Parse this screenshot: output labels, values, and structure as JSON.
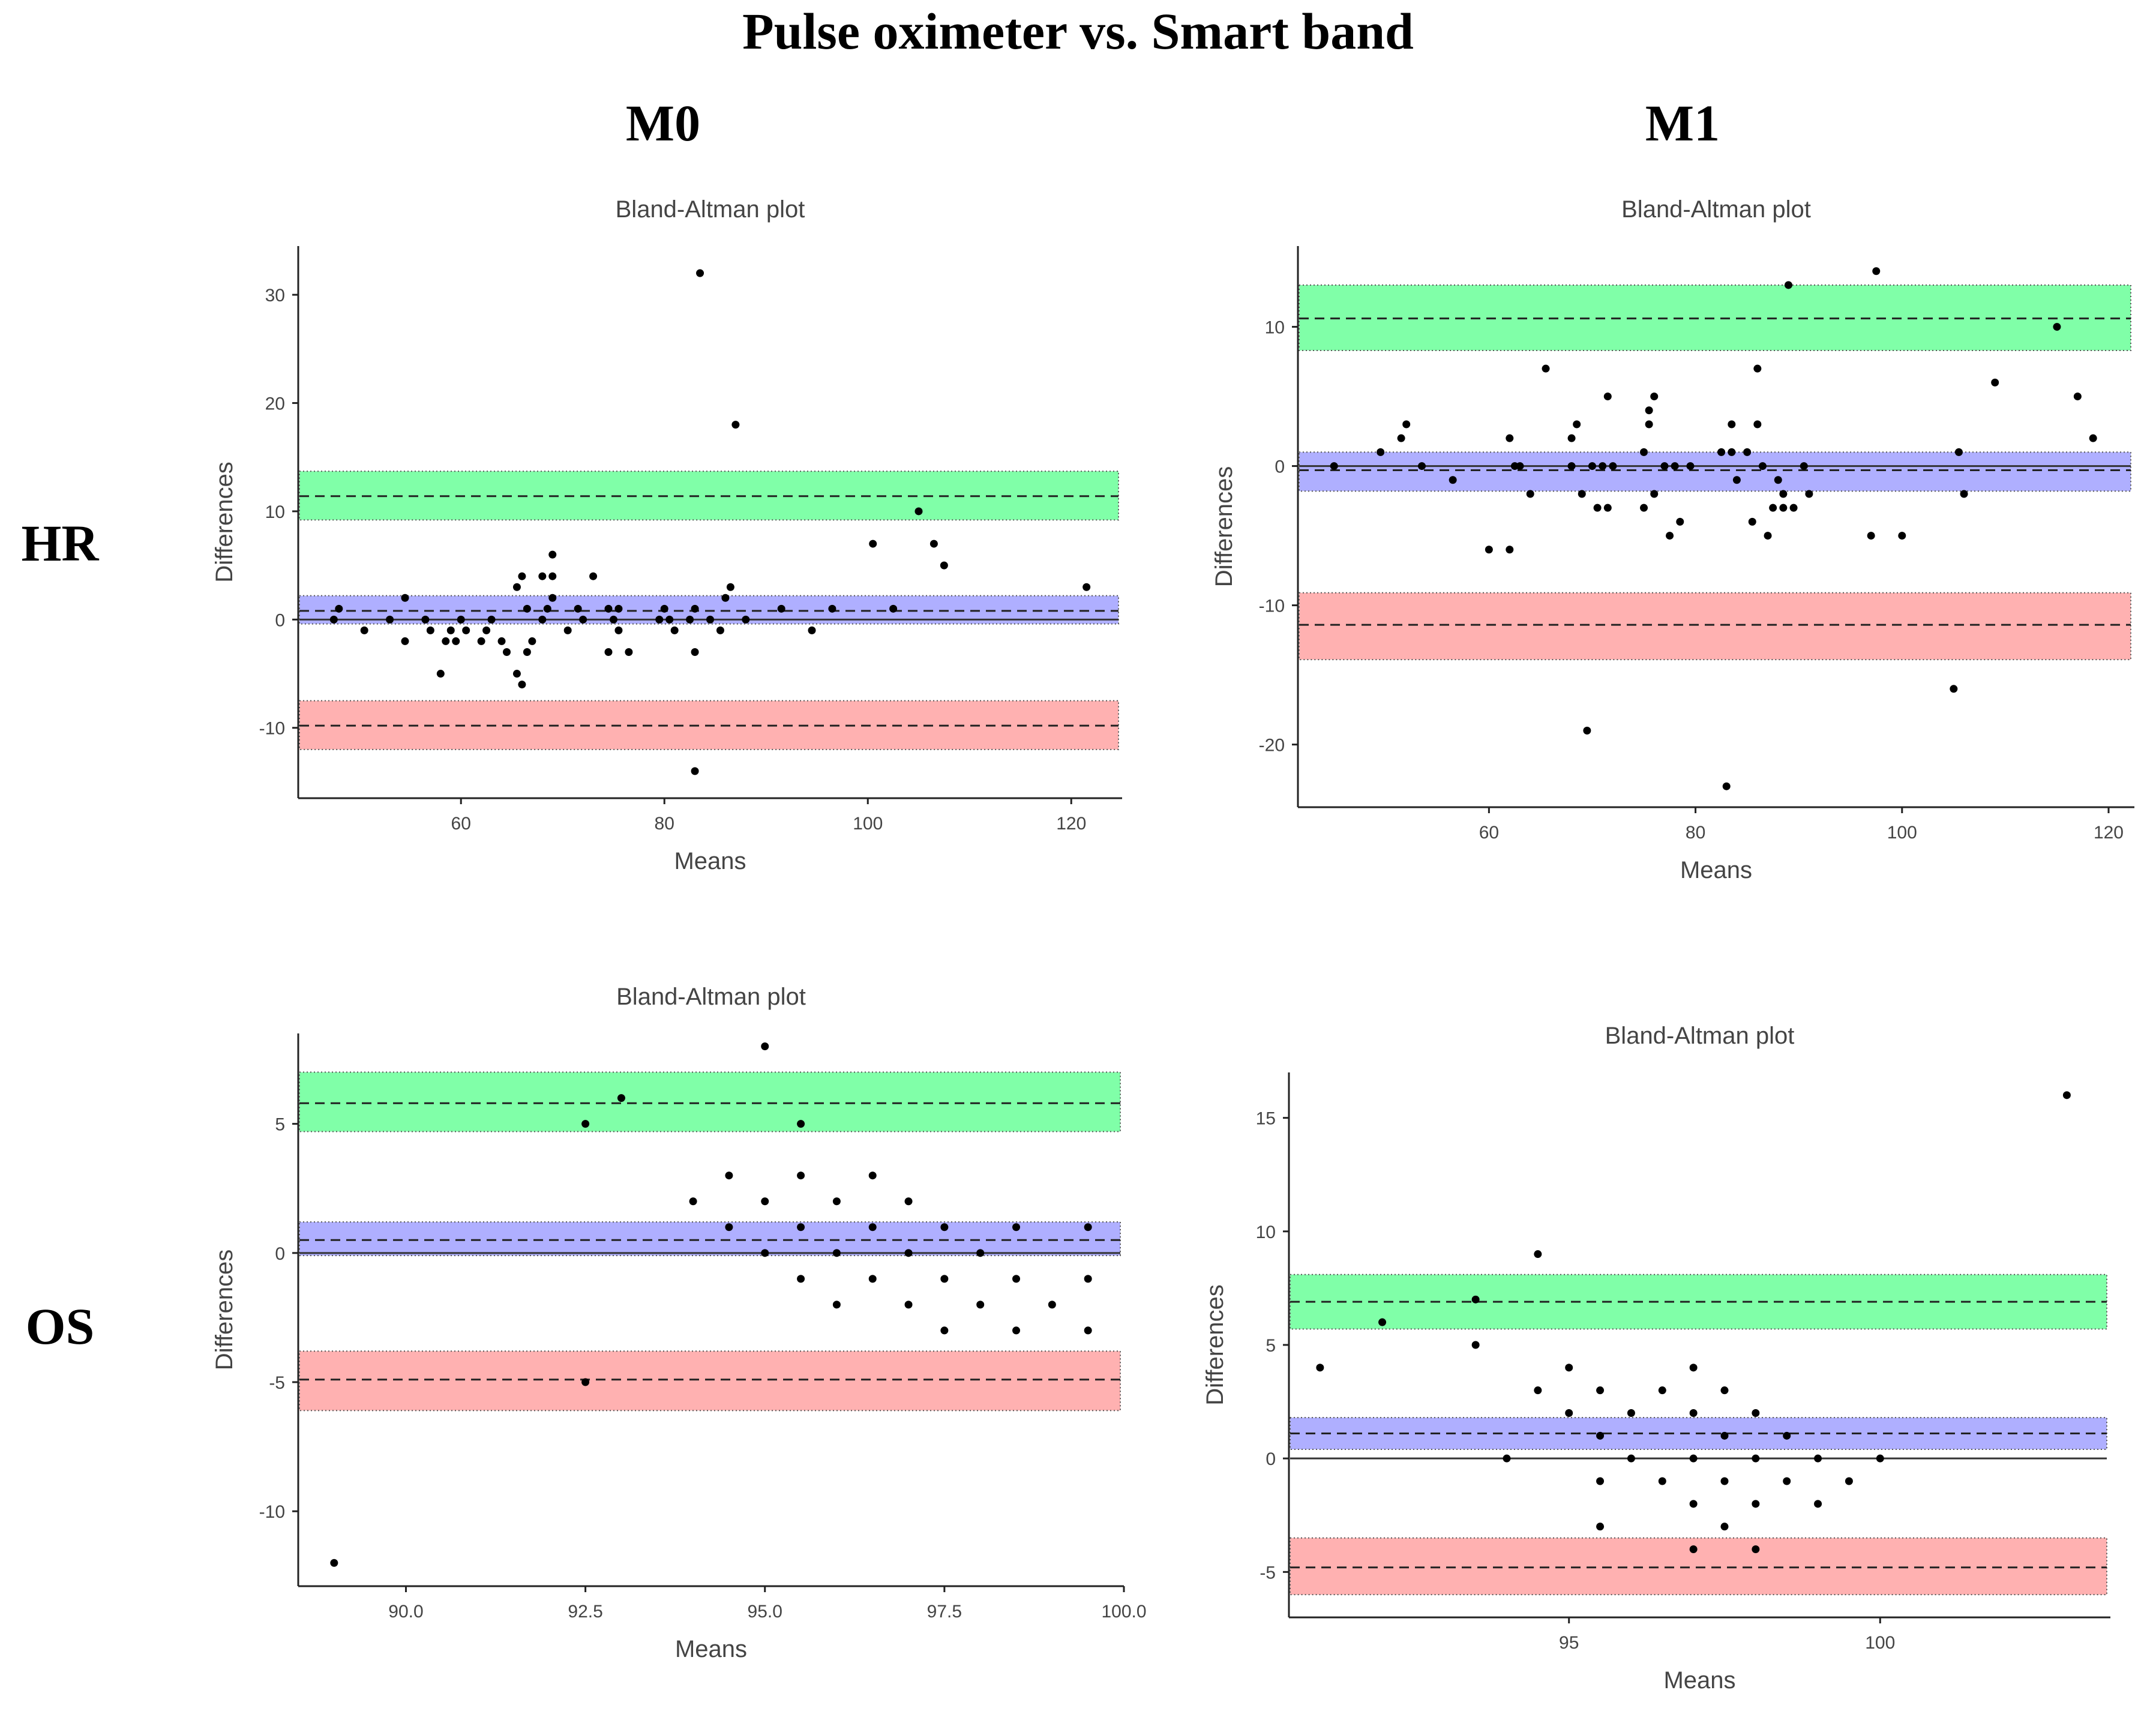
{
  "figure": {
    "title": "Pulse oximeter vs. Smart band",
    "columns": [
      "M0",
      "M1"
    ],
    "rows": [
      "HR",
      "OS"
    ]
  },
  "colors": {
    "upper_band": "#80ffa8",
    "mean_band": "#afafff",
    "lower_band": "#ffb1b1",
    "points": "#000000"
  },
  "chart_data": [
    {
      "id": "hr-m0",
      "type": "scatter",
      "title": "Bland-Altman plot",
      "xlabel": "Means",
      "ylabel": "Differences",
      "xlim": [
        44,
        125
      ],
      "ylim": [
        -16.5,
        34.5
      ],
      "xticks": [
        60,
        80,
        100,
        120
      ],
      "xtick_labels": [
        "60",
        "80",
        "100",
        "120"
      ],
      "yticks": [
        -10,
        0,
        10,
        20,
        30
      ],
      "ytick_labels": [
        "-10",
        "0",
        "10",
        "20",
        "30"
      ],
      "upper_loa": {
        "line": 11.4,
        "band": [
          9.2,
          13.7
        ]
      },
      "mean_diff": {
        "line": 0.8,
        "band": [
          -0.4,
          2.2
        ]
      },
      "lower_loa": {
        "line": -9.8,
        "band": [
          -12,
          -7.5
        ]
      },
      "points": [
        [
          47.5,
          0
        ],
        [
          48,
          1
        ],
        [
          50.5,
          -1
        ],
        [
          53,
          0
        ],
        [
          54.5,
          -2
        ],
        [
          54.5,
          2
        ],
        [
          56.5,
          0
        ],
        [
          57,
          -1
        ],
        [
          58,
          -5
        ],
        [
          58.5,
          -2
        ],
        [
          59,
          -1
        ],
        [
          59.5,
          -2
        ],
        [
          60,
          0
        ],
        [
          60.5,
          -1
        ],
        [
          62,
          -2
        ],
        [
          62.5,
          -1
        ],
        [
          63,
          0
        ],
        [
          64,
          -2
        ],
        [
          64.5,
          -3
        ],
        [
          65.5,
          3
        ],
        [
          65.5,
          -5
        ],
        [
          66,
          4
        ],
        [
          66,
          -6
        ],
        [
          66.5,
          1
        ],
        [
          66.5,
          -3
        ],
        [
          67,
          -2
        ],
        [
          68,
          0
        ],
        [
          68,
          4
        ],
        [
          68.5,
          1
        ],
        [
          69,
          2
        ],
        [
          69,
          4
        ],
        [
          69,
          6
        ],
        [
          70.5,
          -1
        ],
        [
          71.5,
          1
        ],
        [
          72,
          0
        ],
        [
          73,
          4
        ],
        [
          74.5,
          1
        ],
        [
          74.5,
          -3
        ],
        [
          75,
          0
        ],
        [
          75.5,
          1
        ],
        [
          75.5,
          -1
        ],
        [
          76.5,
          -3
        ],
        [
          79.5,
          0
        ],
        [
          80,
          1
        ],
        [
          80.5,
          0
        ],
        [
          81,
          -1
        ],
        [
          82.5,
          0
        ],
        [
          83,
          1
        ],
        [
          83,
          -3
        ],
        [
          83.5,
          32
        ],
        [
          84.5,
          0
        ],
        [
          85.5,
          -1
        ],
        [
          86,
          2
        ],
        [
          86.5,
          3
        ],
        [
          87,
          18
        ],
        [
          88,
          0
        ],
        [
          91.5,
          1
        ],
        [
          94.5,
          -1
        ],
        [
          96.5,
          1
        ],
        [
          100.5,
          7
        ],
        [
          102.5,
          1
        ],
        [
          105,
          10
        ],
        [
          106.5,
          7
        ],
        [
          107.5,
          5
        ],
        [
          121.5,
          3
        ],
        [
          83,
          -14
        ]
      ]
    },
    {
      "id": "hr-m1",
      "type": "scatter",
      "title": "Bland-Altman plot",
      "xlabel": "Means",
      "ylabel": "Differences",
      "xlim": [
        41.5,
        122.5
      ],
      "ylim": [
        -24.5,
        15.8
      ],
      "xticks": [
        60,
        80,
        100,
        120
      ],
      "xtick_labels": [
        "60",
        "80",
        "100",
        "120"
      ],
      "yticks": [
        -20,
        -10,
        0,
        10
      ],
      "ytick_labels": [
        "-20",
        "-10",
        "0",
        "10"
      ],
      "upper_loa": {
        "line": 10.6,
        "band": [
          8.3,
          13
        ]
      },
      "mean_diff": {
        "line": -0.3,
        "band": [
          -1.8,
          1
        ]
      },
      "lower_loa": {
        "line": -11.4,
        "band": [
          -13.9,
          -9.1
        ]
      },
      "points": [
        [
          45,
          0
        ],
        [
          49.5,
          1
        ],
        [
          51.5,
          2
        ],
        [
          52,
          3
        ],
        [
          53.5,
          0
        ],
        [
          56.5,
          -1
        ],
        [
          60,
          -6
        ],
        [
          62,
          -6
        ],
        [
          62,
          2
        ],
        [
          62.5,
          0
        ],
        [
          63,
          0
        ],
        [
          64,
          -2
        ],
        [
          65.5,
          7
        ],
        [
          68,
          0
        ],
        [
          68,
          2
        ],
        [
          68.5,
          3
        ],
        [
          69,
          -2
        ],
        [
          69.5,
          -19
        ],
        [
          70,
          0
        ],
        [
          70.5,
          -3
        ],
        [
          71,
          0
        ],
        [
          71.5,
          -3
        ],
        [
          71.5,
          5
        ],
        [
          72,
          0
        ],
        [
          75,
          -3
        ],
        [
          75,
          1
        ],
        [
          75.5,
          3
        ],
        [
          75.5,
          4
        ],
        [
          76,
          -2
        ],
        [
          76,
          5
        ],
        [
          77,
          0
        ],
        [
          77.5,
          -5
        ],
        [
          78,
          0
        ],
        [
          78.5,
          -4
        ],
        [
          79.5,
          0
        ],
        [
          82.5,
          1
        ],
        [
          83,
          -23
        ],
        [
          83.5,
          3
        ],
        [
          83.5,
          1
        ],
        [
          84,
          -1
        ],
        [
          85,
          1
        ],
        [
          85.5,
          -4
        ],
        [
          86,
          7
        ],
        [
          86,
          3
        ],
        [
          86.5,
          0
        ],
        [
          87,
          -5
        ],
        [
          87.5,
          -3
        ],
        [
          88,
          -1
        ],
        [
          88.5,
          -2
        ],
        [
          88.5,
          -3
        ],
        [
          89,
          13
        ],
        [
          89.5,
          -3
        ],
        [
          90.5,
          0
        ],
        [
          91,
          -2
        ],
        [
          97,
          -5
        ],
        [
          97.5,
          14
        ],
        [
          100,
          -5
        ],
        [
          105,
          -16
        ],
        [
          105.5,
          1
        ],
        [
          106,
          -2
        ],
        [
          109,
          6
        ],
        [
          115,
          10
        ],
        [
          117,
          5
        ],
        [
          118.5,
          2
        ]
      ]
    },
    {
      "id": "os-m0",
      "type": "scatter",
      "title": "Bland-Altman plot",
      "xlabel": "Means",
      "ylabel": "Differences",
      "xlim": [
        88.5,
        100
      ],
      "ylim": [
        -12.9,
        8.5
      ],
      "xticks": [
        90,
        92.5,
        95,
        97.5,
        100
      ],
      "xtick_labels": [
        "90.0",
        "92.5",
        "95.0",
        "97.5",
        "100.0"
      ],
      "yticks": [
        -10,
        -5,
        0,
        5
      ],
      "ytick_labels": [
        "-10",
        "-5",
        "0",
        "5"
      ],
      "upper_loa": {
        "line": 5.8,
        "band": [
          4.7,
          7
        ]
      },
      "mean_diff": {
        "line": 0.5,
        "band": [
          -0.1,
          1.2
        ]
      },
      "lower_loa": {
        "line": -4.9,
        "band": [
          -6.1,
          -3.8
        ]
      },
      "points": [
        [
          89,
          -12
        ],
        [
          92.5,
          5
        ],
        [
          92.5,
          -5
        ],
        [
          93,
          6
        ],
        [
          94,
          2
        ],
        [
          94.5,
          3
        ],
        [
          94.5,
          1
        ],
        [
          95,
          8
        ],
        [
          95,
          2
        ],
        [
          95,
          0
        ],
        [
          95.5,
          5
        ],
        [
          95.5,
          3
        ],
        [
          95.5,
          1
        ],
        [
          95.5,
          -1
        ],
        [
          96,
          2
        ],
        [
          96,
          0
        ],
        [
          96,
          -2
        ],
        [
          96.5,
          3
        ],
        [
          96.5,
          1
        ],
        [
          96.5,
          -1
        ],
        [
          97,
          2
        ],
        [
          97,
          0
        ],
        [
          97,
          -2
        ],
        [
          97.5,
          1
        ],
        [
          97.5,
          -1
        ],
        [
          97.5,
          -3
        ],
        [
          98,
          0
        ],
        [
          98,
          -2
        ],
        [
          98.5,
          1
        ],
        [
          98.5,
          -1
        ],
        [
          98.5,
          -3
        ],
        [
          99,
          -2
        ],
        [
          99.5,
          1
        ],
        [
          99.5,
          -1
        ],
        [
          99.5,
          -3
        ]
      ]
    },
    {
      "id": "os-m1",
      "type": "scatter",
      "title": "Bland-Altman plot",
      "xlabel": "Means",
      "ylabel": "Differences",
      "xlim": [
        90.5,
        103.7
      ],
      "ylim": [
        -7,
        17
      ],
      "xticks": [
        95,
        100
      ],
      "xtick_labels": [
        "95",
        "100"
      ],
      "yticks": [
        -5,
        0,
        5,
        10,
        15
      ],
      "ytick_labels": [
        "-5",
        "0",
        "5",
        "10",
        "15"
      ],
      "upper_loa": {
        "line": 6.9,
        "band": [
          5.7,
          8.1
        ]
      },
      "mean_diff": {
        "line": 1.1,
        "band": [
          0.4,
          1.8
        ]
      },
      "lower_loa": {
        "line": -4.8,
        "band": [
          -6,
          -3.5
        ]
      },
      "points": [
        [
          91,
          4
        ],
        [
          92,
          6
        ],
        [
          93.5,
          7
        ],
        [
          93.5,
          5
        ],
        [
          94,
          0
        ],
        [
          94.5,
          9
        ],
        [
          94.5,
          3
        ],
        [
          95,
          4
        ],
        [
          95,
          2
        ],
        [
          95.5,
          3
        ],
        [
          95.5,
          1
        ],
        [
          95.5,
          -1
        ],
        [
          95.5,
          -3
        ],
        [
          96,
          2
        ],
        [
          96,
          0
        ],
        [
          96.5,
          3
        ],
        [
          96.5,
          -1
        ],
        [
          97,
          4
        ],
        [
          97,
          2
        ],
        [
          97,
          0
        ],
        [
          97,
          -2
        ],
        [
          97,
          -4
        ],
        [
          97.5,
          3
        ],
        [
          97.5,
          1
        ],
        [
          97.5,
          -1
        ],
        [
          97.5,
          -3
        ],
        [
          98,
          2
        ],
        [
          98,
          0
        ],
        [
          98,
          -2
        ],
        [
          98,
          -4
        ],
        [
          98.5,
          1
        ],
        [
          98.5,
          -1
        ],
        [
          99,
          0
        ],
        [
          99,
          -2
        ],
        [
          99.5,
          -1
        ],
        [
          100,
          0
        ],
        [
          103,
          16
        ]
      ]
    }
  ]
}
